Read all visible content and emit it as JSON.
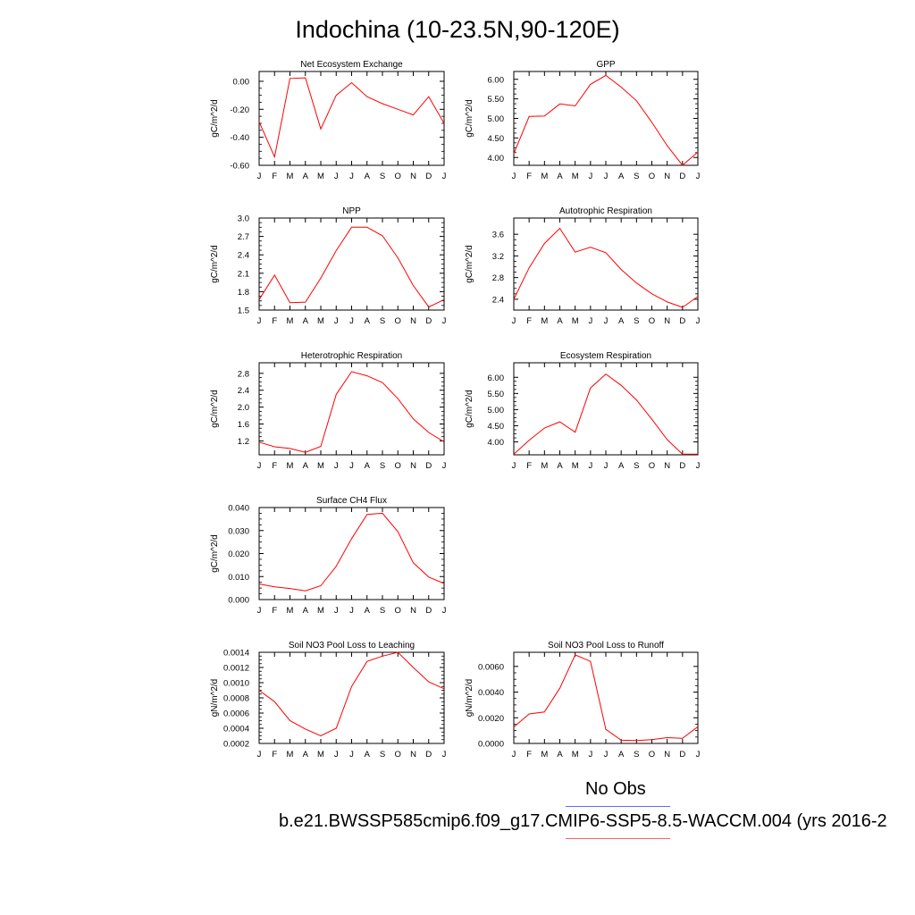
{
  "title": "Indochina (10-23.5N,90-120E)",
  "legend": {
    "obs_label": "No Obs",
    "case_label": "b.e21.BWSSP585cmip6.f09_g17.CMIP6-SSP5-8.5-WACCM.004 (yrs 2016-2",
    "obs_color": "#6666ee",
    "case_color": "#ff0000"
  },
  "chart_data": [
    {
      "type": "line",
      "title": "Net Ecosystem Exchange",
      "ylabel": "gC/m^2/d",
      "categories": [
        "J",
        "F",
        "M",
        "A",
        "M",
        "J",
        "J",
        "A",
        "S",
        "O",
        "N",
        "D",
        "J"
      ],
      "ylim": [
        -0.6,
        0.07
      ],
      "yticks": [
        0.0,
        -0.2,
        -0.4,
        -0.6
      ],
      "ytick_labels": [
        "0.00",
        "-0.20",
        "-0.40",
        "-0.60"
      ],
      "series": [
        {
          "values": [
            -0.29,
            -0.54,
            0.02,
            0.025,
            -0.34,
            -0.1,
            -0.01,
            -0.11,
            -0.16,
            -0.2,
            -0.24,
            -0.11,
            -0.3
          ]
        }
      ]
    },
    {
      "type": "line",
      "title": "GPP",
      "ylabel": "gC/m^2/d",
      "categories": [
        "J",
        "F",
        "M",
        "A",
        "M",
        "J",
        "J",
        "A",
        "S",
        "O",
        "N",
        "D",
        "J"
      ],
      "ylim": [
        3.8,
        6.2
      ],
      "yticks": [
        4.0,
        4.5,
        5.0,
        5.5,
        6.0
      ],
      "ytick_labels": [
        "4.00",
        "4.50",
        "5.00",
        "5.50",
        "6.00"
      ],
      "series": [
        {
          "values": [
            4.1,
            5.05,
            5.06,
            5.37,
            5.32,
            5.87,
            6.1,
            5.8,
            5.45,
            4.9,
            4.3,
            3.8,
            4.14
          ]
        }
      ]
    },
    {
      "type": "line",
      "title": "NPP",
      "ylabel": "gC/m^2/d",
      "categories": [
        "J",
        "F",
        "M",
        "A",
        "M",
        "J",
        "J",
        "A",
        "S",
        "O",
        "N",
        "D",
        "J"
      ],
      "ylim": [
        1.5,
        3.0
      ],
      "yticks": [
        1.5,
        1.8,
        2.1,
        2.4,
        2.7,
        3.0
      ],
      "ytick_labels": [
        "1.5",
        "1.8",
        "2.1",
        "2.4",
        "2.7",
        "3.0"
      ],
      "series": [
        {
          "values": [
            1.67,
            2.07,
            1.62,
            1.63,
            2.02,
            2.47,
            2.85,
            2.85,
            2.71,
            2.35,
            1.9,
            1.55,
            1.67
          ]
        }
      ]
    },
    {
      "type": "line",
      "title": "Autotrophic Respiration",
      "ylabel": "gC/m^2/d",
      "categories": [
        "J",
        "F",
        "M",
        "A",
        "M",
        "J",
        "J",
        "A",
        "S",
        "O",
        "N",
        "D",
        "J"
      ],
      "ylim": [
        2.2,
        3.9
      ],
      "yticks": [
        2.4,
        2.8,
        3.2,
        3.6
      ],
      "ytick_labels": [
        "2.4",
        "2.8",
        "3.2",
        "3.6"
      ],
      "series": [
        {
          "values": [
            2.4,
            2.98,
            3.43,
            3.71,
            3.27,
            3.36,
            3.26,
            2.95,
            2.7,
            2.5,
            2.35,
            2.25,
            2.45
          ]
        }
      ]
    },
    {
      "type": "line",
      "title": "Heterotrophic Respiration",
      "ylabel": "gC/m^2/d",
      "categories": [
        "J",
        "F",
        "M",
        "A",
        "M",
        "J",
        "J",
        "A",
        "S",
        "O",
        "N",
        "D",
        "J"
      ],
      "ylim": [
        0.87,
        3.05
      ],
      "yticks": [
        1.2,
        1.6,
        2.0,
        2.4,
        2.8
      ],
      "ytick_labels": [
        "1.2",
        "1.6",
        "2.0",
        "2.4",
        "2.8"
      ],
      "series": [
        {
          "values": [
            1.17,
            1.06,
            1.02,
            0.93,
            1.07,
            2.3,
            2.84,
            2.74,
            2.58,
            2.2,
            1.72,
            1.4,
            1.18
          ]
        }
      ]
    },
    {
      "type": "line",
      "title": "Ecosystem Respiration",
      "ylabel": "gC/m^2/d",
      "categories": [
        "J",
        "F",
        "M",
        "A",
        "M",
        "J",
        "J",
        "A",
        "S",
        "O",
        "N",
        "D",
        "J"
      ],
      "ylim": [
        3.6,
        6.45
      ],
      "yticks": [
        4.0,
        4.5,
        5.0,
        5.5,
        6.0
      ],
      "ytick_labels": [
        "4.00",
        "4.50",
        "5.00",
        "5.50",
        "6.00"
      ],
      "series": [
        {
          "values": [
            3.62,
            4.05,
            4.43,
            4.62,
            4.3,
            5.67,
            6.1,
            5.75,
            5.3,
            4.7,
            4.07,
            3.62,
            3.62
          ]
        }
      ]
    },
    {
      "type": "line",
      "title": "Surface CH4 Flux",
      "ylabel": "gC/m^2/d",
      "categories": [
        "J",
        "F",
        "M",
        "A",
        "M",
        "J",
        "J",
        "A",
        "S",
        "O",
        "N",
        "D",
        "J"
      ],
      "ylim": [
        0.0,
        0.04
      ],
      "yticks": [
        0.0,
        0.01,
        0.02,
        0.03,
        0.04
      ],
      "ytick_labels": [
        "0.000",
        "0.010",
        "0.020",
        "0.030",
        "0.040"
      ],
      "series": [
        {
          "values": [
            0.0068,
            0.0055,
            0.0048,
            0.0038,
            0.006,
            0.0145,
            0.0265,
            0.037,
            0.0375,
            0.0295,
            0.016,
            0.0098,
            0.007
          ]
        }
      ]
    },
    {
      "type": "line",
      "title": "Soil NO3 Pool Loss to Leaching",
      "ylabel": "gN/m^2/d",
      "categories": [
        "J",
        "F",
        "M",
        "A",
        "M",
        "J",
        "J",
        "A",
        "S",
        "O",
        "N",
        "D",
        "J"
      ],
      "ylim": [
        0.0002,
        0.0014
      ],
      "yticks": [
        0.0002,
        0.0004,
        0.0006,
        0.0008,
        0.001,
        0.0012,
        0.0014
      ],
      "ytick_labels": [
        "0.0002",
        "0.0004",
        "0.0006",
        "0.0008",
        "0.0010",
        "0.0012",
        "0.0014"
      ],
      "series": [
        {
          "values": [
            0.0009,
            0.00075,
            0.0005,
            0.00039,
            0.0003,
            0.0004,
            0.00095,
            0.00128,
            0.00135,
            0.0014,
            0.0012,
            0.00101,
            0.00092
          ]
        }
      ]
    },
    {
      "type": "line",
      "title": "Soil NO3 Pool Loss to Runoff",
      "ylabel": "gN/m^2/d",
      "categories": [
        "J",
        "F",
        "M",
        "A",
        "M",
        "J",
        "J",
        "A",
        "S",
        "O",
        "N",
        "D",
        "J"
      ],
      "ylim": [
        0.0,
        0.0071
      ],
      "yticks": [
        0.0,
        0.002,
        0.004,
        0.006
      ],
      "ytick_labels": [
        "0.0000",
        "0.0020",
        "0.0040",
        "0.0060"
      ],
      "series": [
        {
          "values": [
            0.00128,
            0.0023,
            0.00245,
            0.0043,
            0.0069,
            0.0064,
            0.0011,
            0.00025,
            0.00022,
            0.0003,
            0.00045,
            0.0004,
            0.0013
          ]
        }
      ]
    }
  ]
}
